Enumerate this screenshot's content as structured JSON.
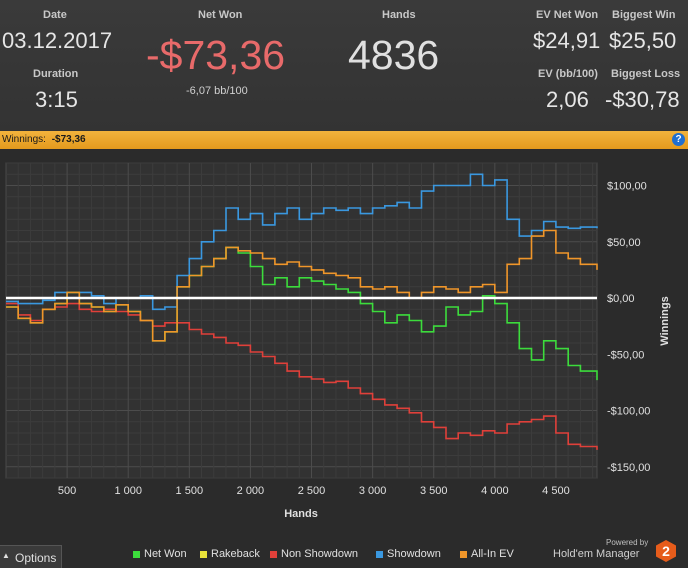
{
  "stats": {
    "date_label": "Date",
    "date_value": "03.12.2017",
    "duration_label": "Duration",
    "duration_value": "3:15",
    "net_won_label": "Net Won",
    "net_won_value": "-$73,36",
    "bb_per_100": "-6,07 bb/100",
    "hands_label": "Hands",
    "hands_value": "4836",
    "ev_net_won_label": "EV Net Won",
    "ev_net_won_value": "$24,91",
    "ev_bb100_label": "EV (bb/100)",
    "ev_bb100_value": "2,06",
    "biggest_win_label": "Biggest Win",
    "biggest_win_value": "$25,50",
    "biggest_loss_label": "Biggest Loss",
    "biggest_loss_value": "-$30,78"
  },
  "winnings_bar": {
    "label": "Winnings:",
    "value": "-$73,36",
    "help_icon": "?"
  },
  "colors": {
    "net_won_value": "#e86a6a",
    "net_won": "#3cdc3c",
    "rakeback": "#e8e23a",
    "non_showdown": "#e0403a",
    "showdown": "#3a98e0",
    "all_in_ev": "#f0962a",
    "header_bar": "#e9a02a"
  },
  "options": {
    "label": "Options",
    "icon": "caret-up-icon"
  },
  "branding": {
    "powered_by": "Powered by",
    "product": "Hold'em Manager",
    "logo_text": "2"
  },
  "chart_data": {
    "type": "line",
    "xlabel": "Hands",
    "ylabel": "Winnings",
    "xlim": [
      0,
      4836
    ],
    "ylim": [
      -160,
      120
    ],
    "x_ticks": [
      500,
      1000,
      1500,
      2000,
      2500,
      3000,
      3500,
      4000,
      4500
    ],
    "x_tick_labels": [
      "500",
      "1 000",
      "1 500",
      "2 000",
      "2 500",
      "3 000",
      "3 500",
      "4 000",
      "4 500"
    ],
    "y_ticks": [
      100,
      50,
      0,
      -50,
      -100,
      -150
    ],
    "y_tick_labels": [
      "$100,00",
      "$50,00",
      "$0,00",
      "-$50,00",
      "-$100,00",
      "-$150,00"
    ],
    "grid": true,
    "zero_line": true,
    "legend_position": "bottom",
    "series": [
      {
        "name": "Net Won",
        "color": "#3cdc3c",
        "x": [
          0,
          100,
          200,
          300,
          400,
          500,
          600,
          700,
          800,
          900,
          1000,
          1100,
          1200,
          1300,
          1400,
          1500,
          1600,
          1700,
          1800,
          1900,
          2000,
          2100,
          2200,
          2300,
          2400,
          2500,
          2600,
          2700,
          2800,
          2900,
          3000,
          3100,
          3200,
          3300,
          3400,
          3500,
          3600,
          3700,
          3800,
          3900,
          4000,
          4100,
          4200,
          4300,
          4400,
          4500,
          4600,
          4700,
          4836
        ],
        "values": [
          -8,
          -18,
          -22,
          -10,
          -5,
          5,
          -5,
          -8,
          -12,
          -6,
          -12,
          -20,
          -38,
          -30,
          10,
          20,
          28,
          35,
          45,
          40,
          28,
          12,
          18,
          10,
          18,
          15,
          12,
          8,
          5,
          -5,
          -12,
          -22,
          -15,
          -20,
          -30,
          -25,
          -8,
          -15,
          -12,
          2,
          -5,
          -22,
          -45,
          -55,
          -38,
          -45,
          -60,
          -65,
          -73
        ]
      },
      {
        "name": "Rakeback",
        "color": "#e8e23a",
        "x": [
          0,
          4836
        ],
        "values": [
          0,
          0
        ]
      },
      {
        "name": "Non Showdown",
        "color": "#e0403a",
        "x": [
          0,
          100,
          200,
          300,
          400,
          500,
          600,
          700,
          800,
          900,
          1000,
          1100,
          1200,
          1300,
          1400,
          1500,
          1600,
          1700,
          1800,
          1900,
          2000,
          2100,
          2200,
          2300,
          2400,
          2500,
          2600,
          2700,
          2800,
          2900,
          3000,
          3100,
          3200,
          3300,
          3400,
          3500,
          3600,
          3700,
          3800,
          3900,
          4000,
          4100,
          4200,
          4300,
          4400,
          4500,
          4600,
          4700,
          4836
        ],
        "values": [
          -5,
          -15,
          -20,
          -10,
          -8,
          -5,
          -10,
          -12,
          -10,
          -12,
          -15,
          -20,
          -25,
          -22,
          -22,
          -28,
          -32,
          -35,
          -40,
          -42,
          -48,
          -52,
          -58,
          -65,
          -70,
          -72,
          -75,
          -74,
          -80,
          -85,
          -90,
          -95,
          -98,
          -102,
          -110,
          -115,
          -125,
          -120,
          -122,
          -118,
          -120,
          -112,
          -110,
          -108,
          -105,
          -120,
          -130,
          -132,
          -135
        ]
      },
      {
        "name": "Showdown",
        "color": "#3a98e0",
        "x": [
          0,
          100,
          200,
          300,
          400,
          500,
          600,
          700,
          800,
          900,
          1000,
          1100,
          1200,
          1300,
          1400,
          1500,
          1600,
          1700,
          1800,
          1900,
          2000,
          2100,
          2200,
          2300,
          2400,
          2500,
          2600,
          2700,
          2800,
          2900,
          3000,
          3100,
          3200,
          3300,
          3400,
          3500,
          3600,
          3700,
          3800,
          3900,
          4000,
          4100,
          4200,
          4300,
          4400,
          4500,
          4600,
          4700,
          4836
        ],
        "values": [
          -3,
          -5,
          -5,
          -2,
          5,
          0,
          5,
          2,
          -5,
          0,
          0,
          2,
          -10,
          -8,
          20,
          35,
          50,
          60,
          80,
          70,
          75,
          65,
          75,
          80,
          70,
          75,
          80,
          78,
          80,
          75,
          80,
          82,
          85,
          80,
          95,
          100,
          100,
          100,
          110,
          100,
          105,
          70,
          55,
          60,
          68,
          63,
          62,
          63,
          62
        ]
      },
      {
        "name": "All-In EV",
        "color": "#f0962a",
        "x": [
          0,
          100,
          200,
          300,
          400,
          500,
          600,
          700,
          800,
          900,
          1000,
          1100,
          1200,
          1300,
          1400,
          1500,
          1600,
          1700,
          1800,
          1900,
          2000,
          2100,
          2200,
          2300,
          2400,
          2500,
          2600,
          2700,
          2800,
          2900,
          3000,
          3100,
          3200,
          3300,
          3400,
          3500,
          3600,
          3700,
          3800,
          3900,
          4000,
          4100,
          4200,
          4300,
          4400,
          4500,
          4600,
          4700,
          4836
        ],
        "values": [
          -8,
          -18,
          -22,
          -10,
          -5,
          5,
          -5,
          -8,
          -12,
          -6,
          -12,
          -20,
          -38,
          -30,
          10,
          20,
          28,
          35,
          45,
          42,
          40,
          35,
          30,
          32,
          28,
          25,
          22,
          20,
          18,
          10,
          8,
          10,
          5,
          0,
          5,
          10,
          8,
          5,
          10,
          12,
          5,
          30,
          35,
          55,
          60,
          40,
          35,
          30,
          25
        ]
      }
    ]
  }
}
